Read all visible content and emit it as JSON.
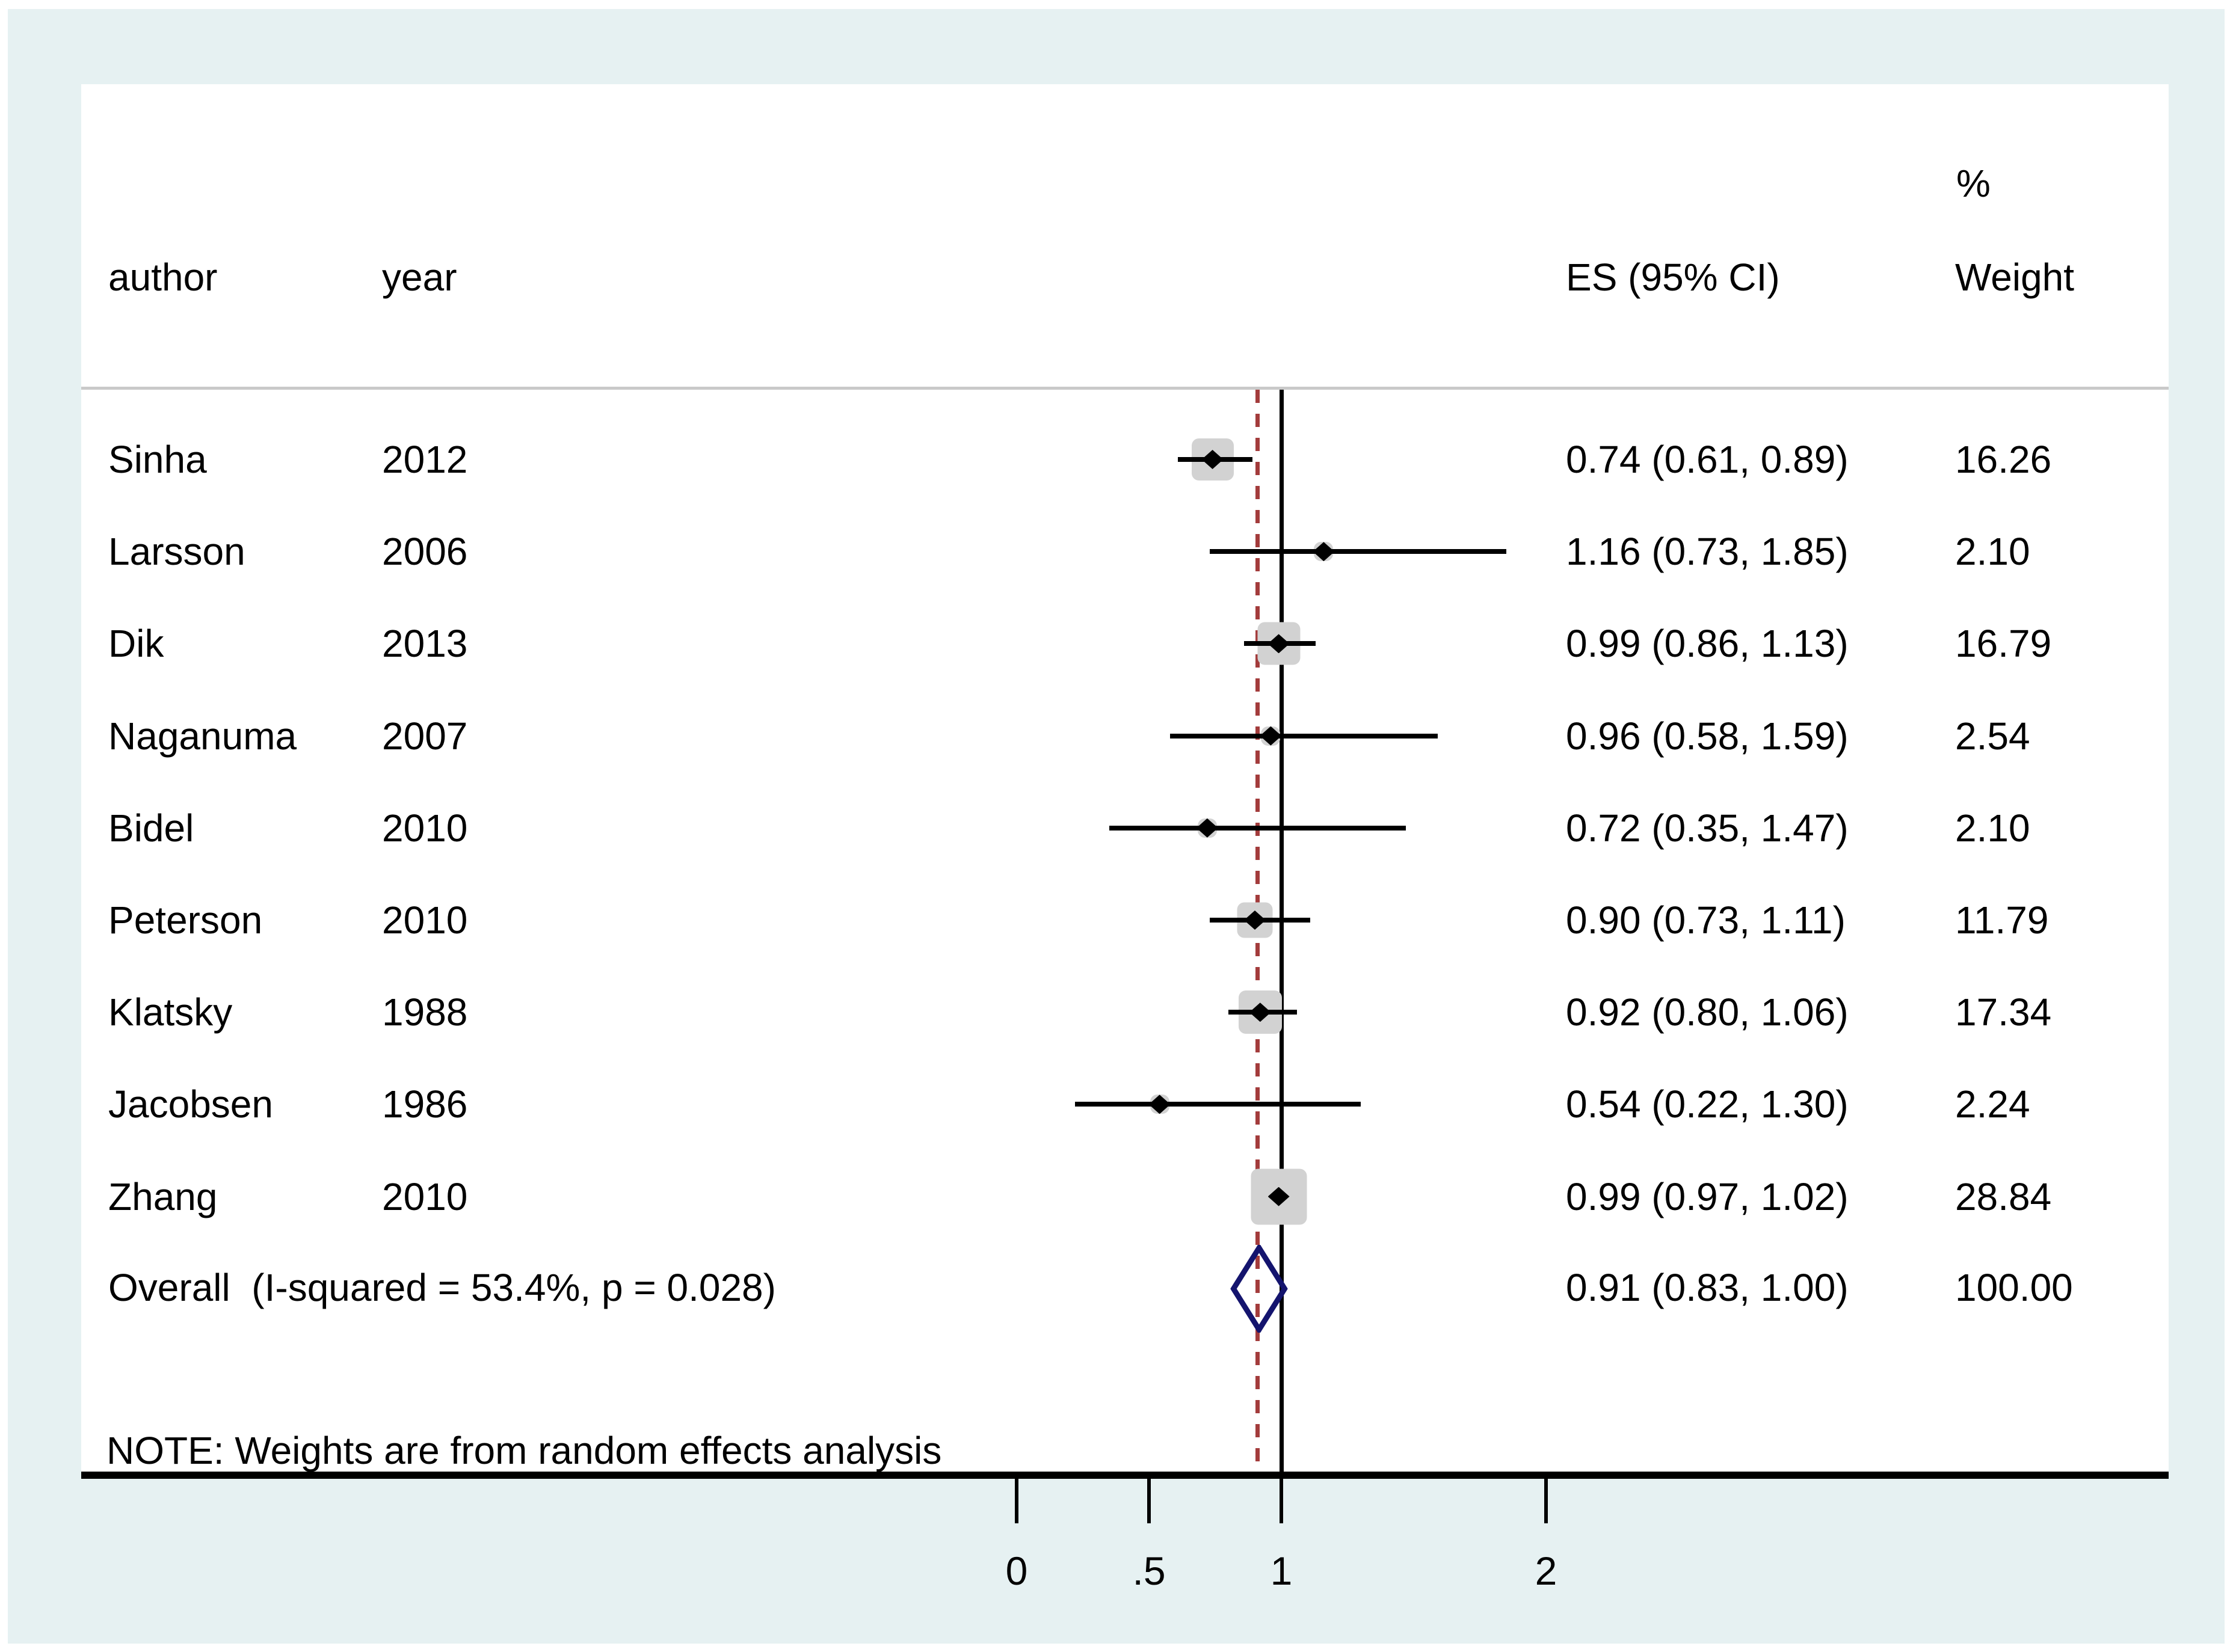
{
  "header": {
    "author": "author",
    "year": "year",
    "es": "ES (95% CI)",
    "percent": "%",
    "weight": "Weight"
  },
  "note": "NOTE: Weights are from random effects analysis",
  "overall": {
    "label": "Overall  (I-squared = 53.4%, p = 0.028)",
    "es_text": "0.91 (0.83, 1.00)",
    "weight_text": "100.00",
    "es": 0.91,
    "ci_low": 0.83,
    "ci_high": 1.0
  },
  "chart_data": {
    "type": "scatter",
    "variant": "forest-plot",
    "title": "",
    "xlabel": "",
    "ylabel": "",
    "x_ticks": [
      {
        "value": 0,
        "label": "0"
      },
      {
        "value": 0.5,
        "label": ".5"
      },
      {
        "value": 1,
        "label": "1"
      },
      {
        "value": 2,
        "label": "2"
      }
    ],
    "reference_lines": [
      {
        "style": "solid",
        "color": "#000000",
        "x": 1.0
      },
      {
        "style": "dashed",
        "color": "#A33C3C",
        "x": 0.91
      }
    ],
    "legend": "none",
    "grid": false,
    "studies": [
      {
        "author": "Sinha",
        "year": "2012",
        "es": 0.74,
        "lo": 0.61,
        "hi": 0.89,
        "weight": 16.26,
        "es_text": "0.74 (0.61, 0.89)",
        "weight_text": "16.26"
      },
      {
        "author": "Larsson",
        "year": "2006",
        "es": 1.16,
        "lo": 0.73,
        "hi": 1.85,
        "weight": 2.1,
        "es_text": "1.16 (0.73, 1.85)",
        "weight_text": "2.10"
      },
      {
        "author": "Dik",
        "year": "2013",
        "es": 0.99,
        "lo": 0.86,
        "hi": 1.13,
        "weight": 16.79,
        "es_text": "0.99 (0.86, 1.13)",
        "weight_text": "16.79"
      },
      {
        "author": "Naganuma",
        "year": "2007",
        "es": 0.96,
        "lo": 0.58,
        "hi": 1.59,
        "weight": 2.54,
        "es_text": "0.96 (0.58, 1.59)",
        "weight_text": "2.54"
      },
      {
        "author": "Bidel",
        "year": "2010",
        "es": 0.72,
        "lo": 0.35,
        "hi": 1.47,
        "weight": 2.1,
        "es_text": "0.72 (0.35, 1.47)",
        "weight_text": "2.10"
      },
      {
        "author": "Peterson",
        "year": "2010",
        "es": 0.9,
        "lo": 0.73,
        "hi": 1.11,
        "weight": 11.79,
        "es_text": "0.90 (0.73, 1.11)",
        "weight_text": "11.79"
      },
      {
        "author": "Klatsky",
        "year": "1988",
        "es": 0.92,
        "lo": 0.8,
        "hi": 1.06,
        "weight": 17.34,
        "es_text": "0.92 (0.80, 1.06)",
        "weight_text": "17.34"
      },
      {
        "author": "Jacobsen",
        "year": "1986",
        "es": 0.54,
        "lo": 0.22,
        "hi": 1.3,
        "weight": 2.24,
        "es_text": "0.54 (0.22, 1.30)",
        "weight_text": "2.24"
      },
      {
        "author": "Zhang",
        "year": "2010",
        "es": 0.99,
        "lo": 0.97,
        "hi": 1.02,
        "weight": 28.84,
        "es_text": "0.99 (0.97, 1.02)",
        "weight_text": "28.84"
      }
    ],
    "overall": {
      "es": 0.91,
      "lo": 0.83,
      "hi": 1.0,
      "weight": 100.0
    }
  },
  "colors": {
    "background": "#E6F1F2",
    "plot_background": "#FFFFFF",
    "weight_box": "#D2D2D2",
    "dashed_line": "#A33C3C",
    "overall_diamond": "#14146E",
    "separator": "#C9C9C9",
    "ink": "#000000"
  }
}
